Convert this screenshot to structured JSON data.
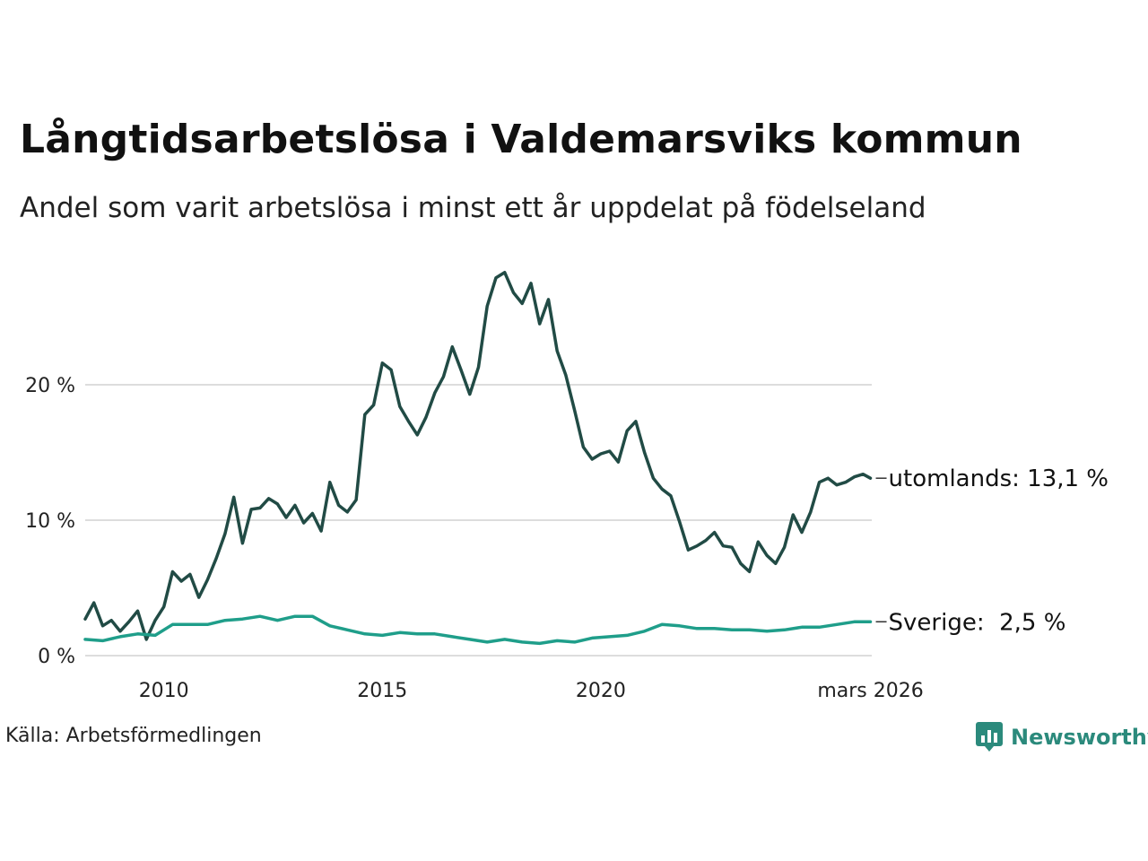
{
  "chart_data": {
    "type": "line",
    "title": "Långtidsarbetslösa i Valdemarsviks kommun",
    "subtitle": "Andel som varit arbetslösa i minst ett år uppdelat på födelseland",
    "xlabel": "",
    "ylabel": "",
    "xlim": [
      2008.2,
      2026.2
    ],
    "ylim": [
      0,
      30
    ],
    "grid": true,
    "y_ticks": [
      0,
      10,
      20
    ],
    "y_tick_labels": [
      "0 %",
      "10 %",
      "20 %"
    ],
    "x_ticks": [
      2010,
      2015,
      2020,
      2026.17
    ],
    "x_tick_labels": [
      "2010",
      "2015",
      "2020",
      "mars 2026"
    ],
    "series": [
      {
        "name": "utomlands",
        "label": "utomlands: 13,1 %",
        "color": "#214b45",
        "x": [
          2008.2,
          2008.4,
          2008.6,
          2008.8,
          2009.0,
          2009.2,
          2009.4,
          2009.6,
          2009.8,
          2010.0,
          2010.2,
          2010.4,
          2010.6,
          2010.8,
          2011.0,
          2011.2,
          2011.4,
          2011.6,
          2011.8,
          2012.0,
          2012.2,
          2012.4,
          2012.6,
          2012.8,
          2013.0,
          2013.2,
          2013.4,
          2013.6,
          2013.8,
          2014.0,
          2014.2,
          2014.4,
          2014.6,
          2014.8,
          2015.0,
          2015.2,
          2015.4,
          2015.6,
          2015.8,
          2016.0,
          2016.2,
          2016.4,
          2016.6,
          2016.8,
          2017.0,
          2017.2,
          2017.4,
          2017.6,
          2017.8,
          2018.0,
          2018.2,
          2018.4,
          2018.6,
          2018.8,
          2019.0,
          2019.2,
          2019.4,
          2019.6,
          2019.8,
          2020.0,
          2020.2,
          2020.4,
          2020.6,
          2020.8,
          2021.0,
          2021.2,
          2021.4,
          2021.6,
          2021.8,
          2022.0,
          2022.2,
          2022.4,
          2022.6,
          2022.8,
          2023.0,
          2023.2,
          2023.4,
          2023.6,
          2023.8,
          2024.0,
          2024.2,
          2024.4,
          2024.6,
          2024.8,
          2025.0,
          2025.2,
          2025.4,
          2025.6,
          2025.8,
          2026.0,
          2026.17
        ],
        "values": [
          2.7,
          3.9,
          2.2,
          2.6,
          1.8,
          2.5,
          3.3,
          1.2,
          2.6,
          3.6,
          6.2,
          5.5,
          6.0,
          4.3,
          5.6,
          7.2,
          9.0,
          11.7,
          8.3,
          10.8,
          10.9,
          11.6,
          11.2,
          10.2,
          11.1,
          9.8,
          10.5,
          9.2,
          12.8,
          11.1,
          10.6,
          11.5,
          17.8,
          18.5,
          21.6,
          21.1,
          18.4,
          17.3,
          16.3,
          17.6,
          19.4,
          20.6,
          22.8,
          21.1,
          19.3,
          21.3,
          25.8,
          27.9,
          28.3,
          26.8,
          26.0,
          27.5,
          24.5,
          26.3,
          22.5,
          20.7,
          18.1,
          15.4,
          14.5,
          14.9,
          15.1,
          14.3,
          16.6,
          17.3,
          15.0,
          13.1,
          12.3,
          11.8,
          9.9,
          7.8,
          8.1,
          8.5,
          9.1,
          8.1,
          8.0,
          6.8,
          6.2,
          8.4,
          7.4,
          6.8,
          8.0,
          10.4,
          9.1,
          10.6,
          12.8,
          13.1,
          12.6,
          12.8,
          13.2,
          13.4,
          13.1
        ]
      },
      {
        "name": "Sverige",
        "label": "Sverige:  2,5 %",
        "color": "#1f9e8a",
        "x": [
          2008.2,
          2008.6,
          2009.0,
          2009.4,
          2009.8,
          2010.2,
          2010.6,
          2011.0,
          2011.4,
          2011.8,
          2012.2,
          2012.6,
          2013.0,
          2013.4,
          2013.8,
          2014.2,
          2014.6,
          2015.0,
          2015.4,
          2015.8,
          2016.2,
          2016.6,
          2017.0,
          2017.4,
          2017.8,
          2018.2,
          2018.6,
          2019.0,
          2019.4,
          2019.8,
          2020.2,
          2020.6,
          2021.0,
          2021.4,
          2021.8,
          2022.2,
          2022.6,
          2023.0,
          2023.4,
          2023.8,
          2024.2,
          2024.6,
          2025.0,
          2025.4,
          2025.8,
          2026.17
        ],
        "values": [
          1.2,
          1.1,
          1.4,
          1.6,
          1.5,
          2.3,
          2.3,
          2.3,
          2.6,
          2.7,
          2.9,
          2.6,
          2.9,
          2.9,
          2.2,
          1.9,
          1.6,
          1.5,
          1.7,
          1.6,
          1.6,
          1.4,
          1.2,
          1.0,
          1.2,
          1.0,
          0.9,
          1.1,
          1.0,
          1.3,
          1.4,
          1.5,
          1.8,
          2.3,
          2.2,
          2.0,
          2.0,
          1.9,
          1.9,
          1.8,
          1.9,
          2.1,
          2.1,
          2.3,
          2.5,
          2.5
        ]
      }
    ]
  },
  "source": "Källa: Arbetsförmedlingen",
  "brand": {
    "name": "Newsworthy",
    "icon": "newsworthy-logo-icon",
    "color": "#2b8a7c"
  }
}
